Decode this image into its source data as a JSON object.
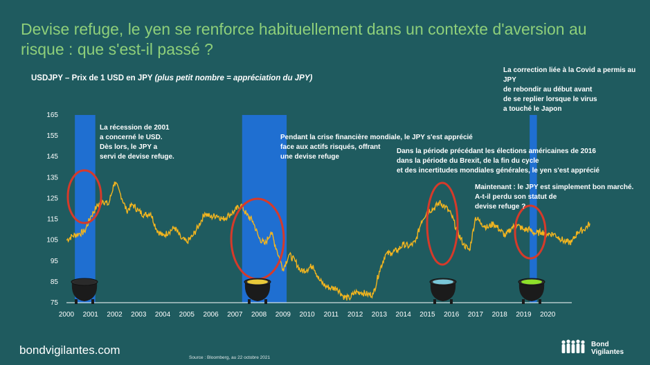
{
  "title": "Devise refuge, le yen se renforce habituellement dans un contexte d'aversion au risque : que s'est-il passé ?",
  "subtitle_main": "USDJPY – Prix de 1 USD en JPY ",
  "subtitle_italic": "(plus petit nombre = appréciation du JPY)",
  "notes": {
    "n2001": "La récession de 2001\na concerné le USD.\nDès lors, le JPY a\nservi de devise refuge.",
    "n2008": "Pendant la crise financière mondiale, le JPY s'est apprécié\nface aux actifs risqués, offrant\nune devise refuge",
    "n2016": "Dans la période précédant les élections américaines de 2016\ndans la période du Brexit, de la fin du cycle\net des incertitudes mondiales générales, le yen s'est apprécié",
    "ncovid": "La correction liée à la Covid a permis au JPY\nde rebondir au début avant\nde se replier lorsque le virus\na touché le Japon",
    "nnow": "Maintenant : le JPY est simplement bon marché.\nA-t-il perdu son statut de\ndevise refuge ?"
  },
  "footer": {
    "site": "bondvigilantes.com",
    "source": "Source : Bloomberg, au 22 octobre 2021",
    "logo_line1": "Bond",
    "logo_line2": "Vigilantes"
  },
  "colors": {
    "background": "#1f5b5f",
    "title": "#8ecf7a",
    "line": "#f2b51f",
    "band": "#1f6fd1",
    "circle": "#d63a2a"
  },
  "icons": [
    "cauldron-icon",
    "cauldron-icon",
    "cauldron-icon",
    "cauldron-icon"
  ],
  "cauldron_liquid_colors": [
    "#2a2a2a",
    "#e9c93a",
    "#79c6d8",
    "#8ee02a"
  ],
  "chart_data": {
    "type": "line",
    "title": "USDJPY – Prix de 1 USD en JPY (plus petit nombre = appréciation du JPY)",
    "xlabel": "",
    "ylabel": "",
    "x_ticks": [
      "2000",
      "2001",
      "2002",
      "2003",
      "2004",
      "2005",
      "2006",
      "2007",
      "2008",
      "2009",
      "2010",
      "2011",
      "2012",
      "2013",
      "2014",
      "2015",
      "2016",
      "2017",
      "2018",
      "2019",
      "2020"
    ],
    "y_ticks": [
      75,
      85,
      95,
      105,
      115,
      125,
      135,
      145,
      155,
      165
    ],
    "xlim": [
      2000,
      2021
    ],
    "ylim": [
      75,
      165
    ],
    "grid": false,
    "series": [
      {
        "x": [
          2000.0,
          2000.25,
          2000.5,
          2000.75,
          2001.0,
          2001.25,
          2001.5,
          2001.75,
          2002.0,
          2002.25,
          2002.5,
          2002.75,
          2003.0,
          2003.25,
          2003.5,
          2003.75,
          2004.0,
          2004.25,
          2004.5,
          2004.75,
          2005.0,
          2005.25,
          2005.5,
          2005.75,
          2006.0,
          2006.25,
          2006.5,
          2006.75,
          2007.0,
          2007.25,
          2007.5,
          2007.75,
          2008.0,
          2008.25,
          2008.5,
          2008.75,
          2009.0,
          2009.25,
          2009.5,
          2009.75,
          2010.0,
          2010.25,
          2010.5,
          2010.75,
          2011.0,
          2011.25,
          2011.5,
          2011.75,
          2012.0,
          2012.25,
          2012.5,
          2012.75,
          2013.0,
          2013.25,
          2013.5,
          2013.75,
          2014.0,
          2014.25,
          2014.5,
          2014.75,
          2015.0,
          2015.25,
          2015.5,
          2015.75,
          2016.0,
          2016.25,
          2016.5,
          2016.75,
          2017.0,
          2017.25,
          2017.5,
          2017.75,
          2018.0,
          2018.25,
          2018.5,
          2018.75,
          2019.0,
          2019.25,
          2019.5,
          2019.75,
          2020.0,
          2020.25,
          2020.5,
          2020.75,
          2021.0,
          2021.25,
          2021.5,
          2021.75
        ],
        "values": [
          105,
          107,
          108,
          109,
          116,
          121,
          124,
          122,
          133,
          127,
          119,
          122,
          119,
          117,
          118,
          110,
          107,
          109,
          111,
          106,
          104,
          107,
          112,
          118,
          116,
          117,
          115,
          117,
          119,
          122,
          117,
          114,
          106,
          103,
          109,
          100,
          91,
          98,
          95,
          90,
          91,
          93,
          86,
          83,
          82,
          82,
          78,
          77,
          80,
          80,
          79,
          79,
          90,
          98,
          99,
          100,
          103,
          102,
          104,
          114,
          119,
          120,
          123,
          121,
          117,
          109,
          103,
          100,
          116,
          113,
          111,
          113,
          110,
          107,
          111,
          112,
          110,
          110,
          108,
          109,
          108,
          108,
          106,
          104,
          104,
          109,
          110,
          113
        ]
      }
    ],
    "highlight_bands": [
      [
        2000.35,
        2001.2
      ],
      [
        2007.3,
        2009.15
      ],
      [
        2019.25,
        2019.55
      ]
    ]
  }
}
